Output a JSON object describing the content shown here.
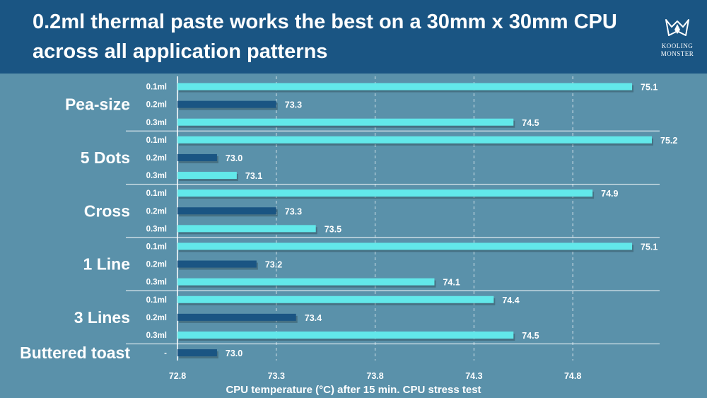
{
  "header": {
    "title": "0.2ml thermal paste works the best on a 30mm x 30mm CPU across all application patterns",
    "logo_line1": "KOOLING",
    "logo_line2": "MONSTER"
  },
  "colors": {
    "background": "#5a91aa",
    "header": "#1a5583",
    "bar_light": "#62e8ea",
    "bar_dark": "#1a5583"
  },
  "chart_data": {
    "type": "bar",
    "orientation": "horizontal",
    "xlabel": "CPU temperature (°C) after 15 min. CPU stress test",
    "xlim": [
      72.8,
      75.2
    ],
    "x_ticks": [
      "72.8",
      "73.3",
      "73.8",
      "74.3",
      "74.8"
    ],
    "grid": true,
    "groups": [
      {
        "name": "Pea-size",
        "bars": [
          {
            "amount": "0.1ml",
            "value": 75.1,
            "highlight": false
          },
          {
            "amount": "0.2ml",
            "value": 73.3,
            "highlight": true
          },
          {
            "amount": "0.3ml",
            "value": 74.5,
            "highlight": false
          }
        ]
      },
      {
        "name": "5 Dots",
        "bars": [
          {
            "amount": "0.1ml",
            "value": 75.2,
            "highlight": false
          },
          {
            "amount": "0.2ml",
            "value": 73.0,
            "highlight": true
          },
          {
            "amount": "0.3ml",
            "value": 73.1,
            "highlight": false
          }
        ]
      },
      {
        "name": "Cross",
        "bars": [
          {
            "amount": "0.1ml",
            "value": 74.9,
            "highlight": false
          },
          {
            "amount": "0.2ml",
            "value": 73.3,
            "highlight": true
          },
          {
            "amount": "0.3ml",
            "value": 73.5,
            "highlight": false
          }
        ]
      },
      {
        "name": "1 Line",
        "bars": [
          {
            "amount": "0.1ml",
            "value": 75.1,
            "highlight": false
          },
          {
            "amount": "0.2ml",
            "value": 73.2,
            "highlight": true
          },
          {
            "amount": "0.3ml",
            "value": 74.1,
            "highlight": false
          }
        ]
      },
      {
        "name": "3 Lines",
        "bars": [
          {
            "amount": "0.1ml",
            "value": 74.4,
            "highlight": false
          },
          {
            "amount": "0.2ml",
            "value": 73.4,
            "highlight": true
          },
          {
            "amount": "0.3ml",
            "value": 74.5,
            "highlight": false
          }
        ]
      },
      {
        "name": "Buttered toast",
        "bars": [
          {
            "amount": "-",
            "value": 73.0,
            "highlight": true
          }
        ]
      }
    ]
  }
}
